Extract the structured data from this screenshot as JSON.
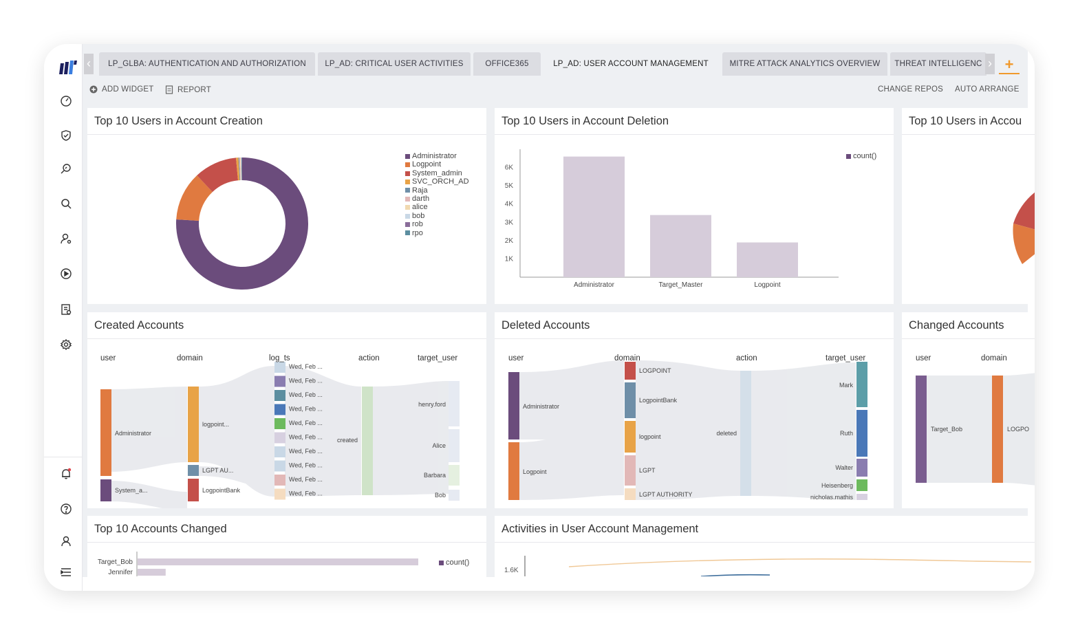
{
  "tabs": [
    {
      "label": "LP_GLBA: AUTHENTICATION AND AUTHORIZATION",
      "active": false
    },
    {
      "label": "LP_AD: CRITICAL USER ACTIVITIES",
      "active": false
    },
    {
      "label": "OFFICE365",
      "active": false
    },
    {
      "label": "LP_AD: USER ACCOUNT MANAGEMENT",
      "active": true
    },
    {
      "label": "MITRE ATTACK ANALYTICS OVERVIEW",
      "active": false
    },
    {
      "label": "THREAT INTELLIGENC",
      "active": false
    }
  ],
  "toolbar": {
    "add_widget": "ADD WIDGET",
    "report": "REPORT",
    "change_repos": "CHANGE REPOS",
    "auto_arrange": "AUTO ARRANGE"
  },
  "sidebar": {
    "icons": [
      "dashboard-icon",
      "shield-check-icon",
      "search-analytics-icon",
      "search-icon",
      "user-settings-icon",
      "play-icon",
      "report-icon",
      "gear-icon"
    ],
    "bottom_icons": [
      "bell-icon",
      "help-icon",
      "user-icon",
      "menu-icon"
    ]
  },
  "widgets": {
    "creation": {
      "title": "Top 10 Users in Account Creation",
      "chart_data": {
        "type": "pie",
        "labels": [
          "Administrator",
          "Logpoint",
          "System_admin",
          "SVC_ORCH_AD",
          "Raja",
          "darth",
          "alice",
          "bob",
          "rob",
          "rpo"
        ],
        "values": [
          76,
          12,
          10.5,
          0.6,
          0.2,
          0.2,
          0.2,
          0.1,
          0.1,
          0.1
        ],
        "colors": [
          "#6b4c7c",
          "#e07a40",
          "#c4504a",
          "#e8a347",
          "#6f8fa8",
          "#e2b8b7",
          "#f1d9b0",
          "#c9d8e6",
          "#8a6d9a",
          "#5c8ea0"
        ],
        "legend_position": "top-right"
      }
    },
    "deletion": {
      "title": "Top 10 Users in Account Deletion",
      "chart_data": {
        "type": "bar",
        "categories": [
          "Administrator",
          "Target_Master",
          "Logpoint"
        ],
        "series": [
          {
            "name": "count()",
            "values": [
              6600,
              3400,
              1900
            ]
          }
        ],
        "yticks": [
          "1K",
          "2K",
          "3K",
          "4K",
          "5K",
          "6K"
        ],
        "ylim": [
          0,
          7000
        ],
        "color": "#d6ccda",
        "legend_position": "top-right"
      }
    },
    "account_changes_partial": {
      "title": "Top 10 Users in Accou"
    },
    "created": {
      "title": "Created Accounts",
      "columns": [
        "user",
        "domain",
        "log_ts",
        "action",
        "target_user"
      ],
      "users": [
        "Administrator",
        "System_a..."
      ],
      "domains": [
        "logpoint...",
        "LGPT AU...",
        "LogpointBank"
      ],
      "log_ts": [
        "Wed, Feb ...",
        "Wed, Feb ...",
        "Wed, Feb ...",
        "Wed, Feb ...",
        "Wed, Feb ...",
        "Wed, Feb ...",
        "Wed, Feb ...",
        "Wed, Feb ...",
        "Wed, Feb ...",
        "Wed, Feb ..."
      ],
      "action": "created",
      "targets": [
        "henry.ford",
        "Alice",
        "Barbara",
        "Bob"
      ]
    },
    "deleted": {
      "title": "Deleted Accounts",
      "columns": [
        "user",
        "domain",
        "action",
        "target_user"
      ],
      "users": [
        "Administrator",
        "Logpoint"
      ],
      "domains": [
        "LOGPOINT",
        "LogpointBank",
        "logpoint",
        "LGPT",
        "LGPT AUTHORITY"
      ],
      "action": "deleted",
      "targets": [
        "Mark",
        "Ruth",
        "Walter",
        "Heisenberg",
        "nicholas.mathis"
      ]
    },
    "changed": {
      "title": "Changed Accounts",
      "columns": [
        "user",
        "domain"
      ],
      "users": [
        "Target_Bob"
      ],
      "domains": [
        "LOGPO"
      ]
    },
    "top_changed": {
      "title": "Top 10 Accounts Changed",
      "chart_data": {
        "type": "bar",
        "categories": [
          "Target_Bob",
          "Jennifer"
        ],
        "series": [
          {
            "name": "count()",
            "values": [
              100,
              10
            ]
          }
        ],
        "legend_position": "top-right"
      }
    },
    "activities": {
      "title": "Activities in User Account Management",
      "chart_data": {
        "type": "line",
        "yticks": [
          "1.6K"
        ]
      }
    }
  }
}
